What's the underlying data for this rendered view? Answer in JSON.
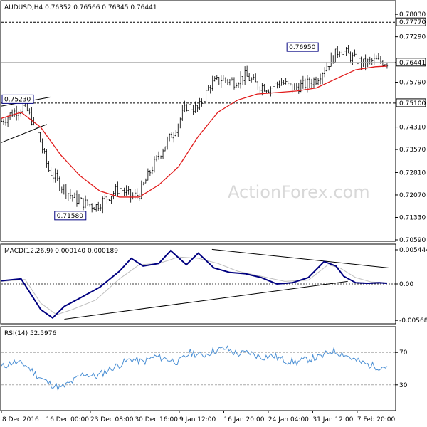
{
  "chart_data": [
    {
      "type": "candlestick",
      "title": "AUDUSD,H4  0.76352 0.76566 0.76345 0.76441",
      "ylim": [
        0.7059,
        0.7808
      ],
      "yticks": [
        "0.78030",
        "0.77290",
        "0.76441",
        "0.75790",
        "0.75100",
        "0.74310",
        "0.73570",
        "0.72810",
        "0.72070",
        "0.71330",
        "0.70590"
      ],
      "last_price": "0.76441",
      "levels": [
        {
          "label": "0.77770",
          "value": 0.7777,
          "style": "dashed"
        },
        {
          "label": "0.75100",
          "value": 0.751,
          "style": "dashed"
        }
      ],
      "annotations": [
        {
          "text": "0.76950",
          "x": 0.805,
          "y": 0.7695
        },
        {
          "text": "0.75230",
          "x": 0.012,
          "y": 0.7523
        },
        {
          "text": "0.71580",
          "x": 0.175,
          "y": 0.7158
        }
      ],
      "price_x": [
        0.0,
        0.03,
        0.06,
        0.09,
        0.12,
        0.15,
        0.18,
        0.21,
        0.24,
        0.27,
        0.3,
        0.33,
        0.35,
        0.38,
        0.41,
        0.44,
        0.47,
        0.5,
        0.53,
        0.56,
        0.59,
        0.62,
        0.65,
        0.68,
        0.71,
        0.74,
        0.77,
        0.8,
        0.83,
        0.86,
        0.89,
        0.92,
        0.95,
        0.98
      ],
      "price_close": [
        0.745,
        0.748,
        0.75,
        0.742,
        0.729,
        0.724,
        0.72,
        0.718,
        0.717,
        0.72,
        0.723,
        0.72,
        0.721,
        0.729,
        0.736,
        0.742,
        0.75,
        0.749,
        0.757,
        0.759,
        0.758,
        0.76,
        0.757,
        0.756,
        0.758,
        0.756,
        0.757,
        0.759,
        0.764,
        0.769,
        0.766,
        0.764,
        0.765,
        0.7644
      ],
      "ma_x": [
        0.0,
        0.05,
        0.1,
        0.15,
        0.2,
        0.25,
        0.3,
        0.35,
        0.4,
        0.45,
        0.5,
        0.55,
        0.6,
        0.65,
        0.7,
        0.75,
        0.8,
        0.85,
        0.9,
        0.95,
        0.98
      ],
      "ma_y": [
        0.746,
        0.748,
        0.743,
        0.734,
        0.727,
        0.722,
        0.72,
        0.72,
        0.724,
        0.73,
        0.74,
        0.748,
        0.752,
        0.754,
        0.7545,
        0.755,
        0.756,
        0.759,
        0.762,
        0.763,
        0.7632
      ],
      "trendlines": [
        {
          "x1": 0.0,
          "y1": 0.75,
          "x2": 0.125,
          "y2": 0.753
        },
        {
          "x1": 0.0,
          "y1": 0.738,
          "x2": 0.115,
          "y2": 0.744
        }
      ]
    },
    {
      "type": "line",
      "title": "MACD(12,26,9) 0.000140 0.000189",
      "ylim": [
        -0.006,
        0.006
      ],
      "yticks": [
        "0.005444",
        "0.00",
        "-0.005685"
      ],
      "macd_x": [
        0.0,
        0.05,
        0.1,
        0.13,
        0.16,
        0.2,
        0.25,
        0.3,
        0.33,
        0.36,
        0.4,
        0.43,
        0.47,
        0.5,
        0.54,
        0.58,
        0.62,
        0.66,
        0.7,
        0.74,
        0.78,
        0.82,
        0.85,
        0.87,
        0.9,
        0.93,
        0.96,
        0.98
      ],
      "macd_y": [
        0.0005,
        0.0008,
        -0.004,
        -0.0053,
        -0.0035,
        -0.0022,
        -0.0005,
        0.002,
        0.004,
        0.0028,
        0.0032,
        0.0052,
        0.003,
        0.0048,
        0.0025,
        0.0018,
        0.0016,
        0.001,
        0.0,
        0.0002,
        0.001,
        0.0035,
        0.0028,
        0.0012,
        0.0002,
        0.0001,
        0.0002,
        0.0001
      ],
      "signal_x": [
        0.0,
        0.06,
        0.1,
        0.14,
        0.18,
        0.24,
        0.3,
        0.35,
        0.4,
        0.45,
        0.5,
        0.55,
        0.6,
        0.66,
        0.72,
        0.78,
        0.83,
        0.86,
        0.9,
        0.94,
        0.98
      ],
      "signal_y": [
        0.0004,
        0.0007,
        -0.003,
        -0.0048,
        -0.004,
        -0.0025,
        0.0008,
        0.003,
        0.0032,
        0.0042,
        0.004,
        0.0032,
        0.002,
        0.0012,
        0.0004,
        0.0006,
        0.003,
        0.0025,
        0.001,
        0.0003,
        0.0002
      ],
      "trendlines": [
        {
          "x1": 0.16,
          "y1": -0.0055,
          "x2": 0.88,
          "y2": 0.0004
        },
        {
          "x1": 0.535,
          "y1": 0.0054,
          "x2": 0.985,
          "y2": 0.0025
        }
      ]
    },
    {
      "type": "line",
      "title": "RSI(14) 52.5976",
      "ylim": [
        0,
        100
      ],
      "yticks": [
        "70",
        "30"
      ],
      "levels": [
        70,
        30
      ],
      "rsi_x": [
        0.0,
        0.03,
        0.06,
        0.09,
        0.12,
        0.15,
        0.18,
        0.21,
        0.24,
        0.27,
        0.3,
        0.33,
        0.36,
        0.39,
        0.42,
        0.45,
        0.48,
        0.51,
        0.54,
        0.57,
        0.6,
        0.63,
        0.66,
        0.69,
        0.72,
        0.75,
        0.78,
        0.81,
        0.84,
        0.87,
        0.9,
        0.93,
        0.96,
        0.98
      ],
      "rsi_y": [
        52,
        58,
        55,
        42,
        32,
        26,
        34,
        44,
        40,
        48,
        55,
        62,
        58,
        65,
        62,
        58,
        70,
        66,
        72,
        75,
        68,
        70,
        64,
        66,
        60,
        58,
        62,
        64,
        72,
        68,
        60,
        55,
        52,
        53
      ]
    }
  ],
  "x_axis": {
    "ticks": [
      "8 Dec 2016",
      "16 Dec 00:00",
      "23 Dec 08:00",
      "30 Dec 16:00",
      "9 Jan 12:00",
      "16 Jan 20:00",
      "24 Jan 04:00",
      "31 Jan 12:00",
      "7 Feb 20:00"
    ],
    "positions": [
      0.0,
      0.113,
      0.226,
      0.339,
      0.452,
      0.565,
      0.678,
      0.791,
      0.904
    ]
  },
  "watermark": "ActionForex.com",
  "colors": {
    "price": "#000000",
    "ma": "#e11b1b",
    "macd": "#000080",
    "signal": "#bebebe",
    "rsi": "#4a8fd4",
    "grid": "#000000",
    "levels": "#000000"
  }
}
